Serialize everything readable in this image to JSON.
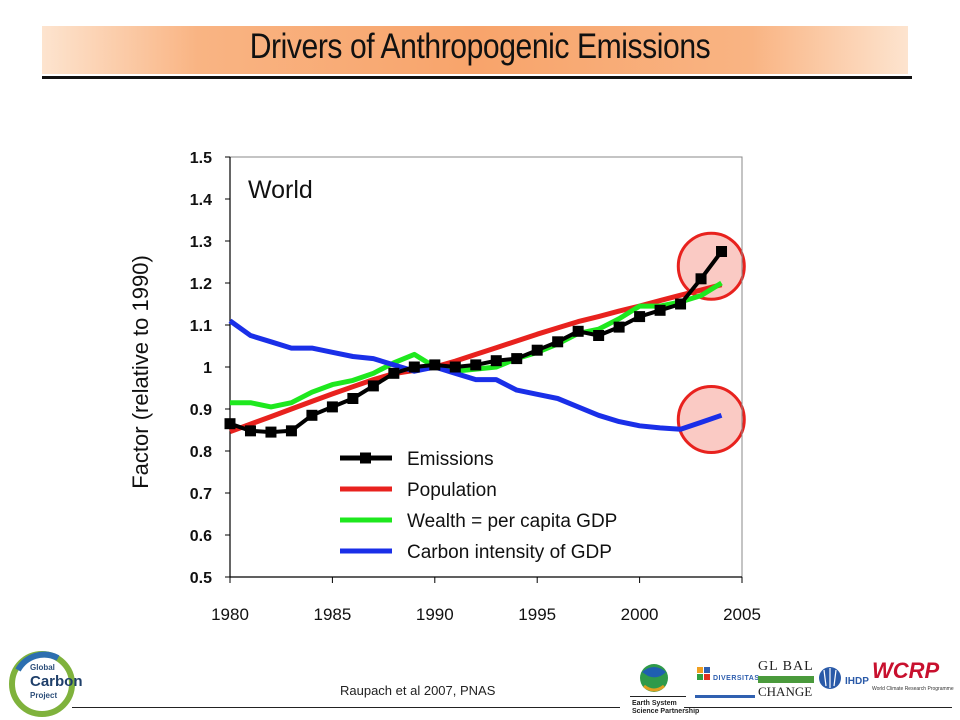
{
  "title": "Drivers of Anthropogenic Emissions",
  "citation": "Raupach et al 2007, PNAS",
  "logos": {
    "gcp_line1": "Global",
    "gcp_line2": "Carbon",
    "gcp_line3": "Project",
    "essp_line1": "Earth System",
    "essp_line2": "Science Partnership",
    "diversitas": "DIVERSITAS",
    "igbp_line1": "GL BAL",
    "igbp_line2": "CHANGE",
    "ihdp": "IHDP",
    "wcrp": "WCRP",
    "wcrp_sub": "World Climate Research Programme"
  },
  "chart_data": {
    "type": "line",
    "annotation": "World",
    "xlabel": "",
    "ylabel": "Factor (relative to 1990)",
    "xlim": [
      1980,
      2005
    ],
    "ylim": [
      0.5,
      1.5
    ],
    "xticks": [
      "1980",
      "1985",
      "1990",
      "1995",
      "2000",
      "2005"
    ],
    "yticks": [
      "0.5",
      "0.6",
      "0.7",
      "0.8",
      "0.9",
      "1",
      "1.1",
      "1.2",
      "1.3",
      "1.4",
      "1.5"
    ],
    "grid": false,
    "legend_position": "bottom-center",
    "x": [
      1980,
      1981,
      1982,
      1983,
      1984,
      1985,
      1986,
      1987,
      1988,
      1989,
      1990,
      1991,
      1992,
      1993,
      1994,
      1995,
      1996,
      1997,
      1998,
      1999,
      2000,
      2001,
      2002,
      2003,
      2004
    ],
    "series": [
      {
        "name": "Emissions",
        "color": "#000000",
        "markers": true,
        "values": [
          0.865,
          0.848,
          0.845,
          0.848,
          0.885,
          0.905,
          0.925,
          0.955,
          0.985,
          1.0,
          1.005,
          1.0,
          1.005,
          1.015,
          1.02,
          1.04,
          1.06,
          1.085,
          1.075,
          1.095,
          1.12,
          1.135,
          1.15,
          1.21,
          1.275
        ]
      },
      {
        "name": "Population",
        "color": "#e8221e",
        "markers": false,
        "values": [
          0.846,
          0.864,
          0.882,
          0.9,
          0.918,
          0.936,
          0.953,
          0.97,
          0.984,
          0.992,
          1.0,
          1.014,
          1.03,
          1.046,
          1.062,
          1.078,
          1.093,
          1.108,
          1.12,
          1.133,
          1.145,
          1.158,
          1.171,
          1.183,
          1.196
        ]
      },
      {
        "name": "Wealth = per capita GDP",
        "color": "#1ee81e",
        "markers": false,
        "values": [
          0.915,
          0.915,
          0.905,
          0.915,
          0.94,
          0.958,
          0.968,
          0.985,
          1.01,
          1.03,
          1.0,
          0.99,
          0.995,
          1.0,
          1.02,
          1.035,
          1.055,
          1.08,
          1.09,
          1.115,
          1.145,
          1.145,
          1.155,
          1.17,
          1.2
        ]
      },
      {
        "name": "Carbon intensity of GDP",
        "color": "#1a2fe8",
        "markers": false,
        "values": [
          1.11,
          1.075,
          1.06,
          1.045,
          1.045,
          1.035,
          1.025,
          1.02,
          1.005,
          0.99,
          1.0,
          0.985,
          0.97,
          0.97,
          0.945,
          0.935,
          0.925,
          0.905,
          0.885,
          0.87,
          0.86,
          0.855,
          0.852,
          0.868,
          0.885
        ]
      }
    ],
    "highlight_circles": [
      {
        "x": 2003.5,
        "y": 1.24,
        "color": "#e8221e"
      },
      {
        "x": 2003.5,
        "y": 0.875,
        "color": "#e8221e"
      }
    ]
  }
}
